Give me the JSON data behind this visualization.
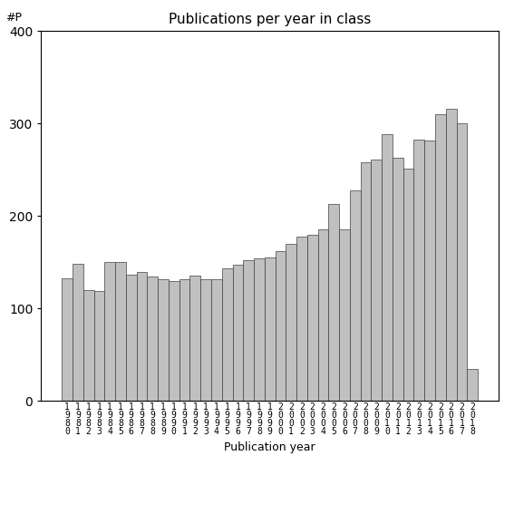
{
  "title": "Publications per year in class",
  "xlabel": "Publication year",
  "ylabel": "#P",
  "bar_color": "#c0c0c0",
  "bar_edge_color": "#404040",
  "ylim": [
    0,
    400
  ],
  "yticks": [
    0,
    100,
    200,
    300,
    400
  ],
  "years": [
    1980,
    1981,
    1982,
    1983,
    1984,
    1985,
    1986,
    1987,
    1988,
    1989,
    1990,
    1991,
    1992,
    1993,
    1994,
    1995,
    1996,
    1997,
    1998,
    1999,
    2000,
    2001,
    2002,
    2003,
    2004,
    2005,
    2006,
    2007,
    2008,
    2009,
    2010,
    2011,
    2012,
    2013,
    2014,
    2015,
    2016,
    2017,
    2018
  ],
  "values": [
    133,
    148,
    120,
    119,
    150,
    150,
    136,
    139,
    134,
    132,
    130,
    132,
    135,
    132,
    132,
    143,
    147,
    152,
    154,
    155,
    162,
    170,
    178,
    180,
    185,
    213,
    185,
    228,
    258,
    261,
    288,
    263,
    251,
    282,
    281,
    310,
    316,
    300,
    35
  ],
  "title_fontsize": 11,
  "axis_label_fontsize": 9,
  "tick_fontsize": 8,
  "ylabel_fontsize": 9
}
